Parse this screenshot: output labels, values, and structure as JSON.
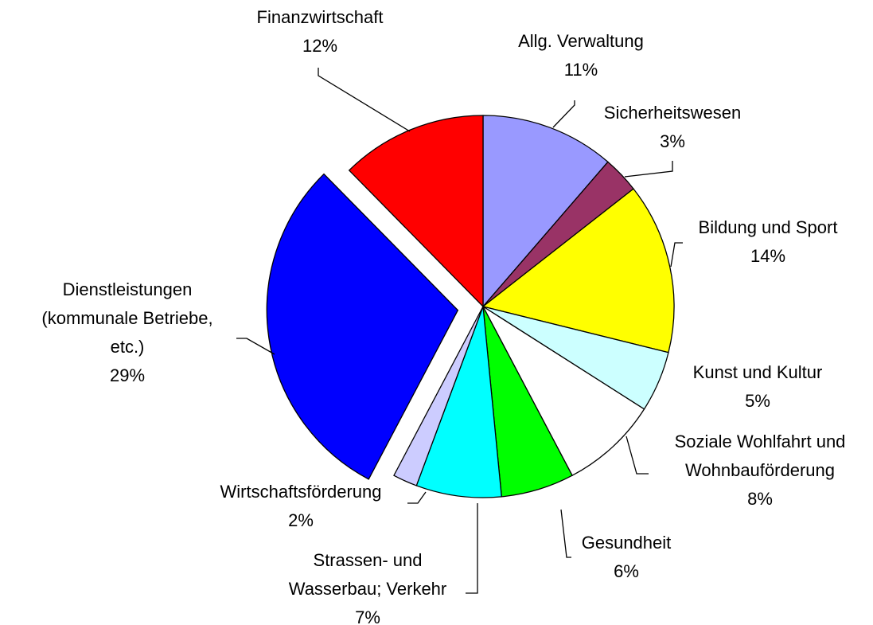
{
  "chart_data": {
    "type": "pie",
    "categories": [
      "Allg. Verwaltung",
      "Sicherheitswesen",
      "Bildung und Sport",
      "Kunst und Kultur",
      "Soziale Wohlfahrt und\nWohnbauförderung",
      "Gesundheit",
      "Strassen- und\nWasserbau; Verkehr",
      "Wirtschaftsförderung",
      "Dienstleistungen\n(kommunale Betriebe,\netc.)",
      "Finanzwirtschaft"
    ],
    "values": [
      11,
      3,
      14,
      5,
      8,
      6,
      7,
      2,
      29,
      12
    ],
    "value_labels": [
      "11%",
      "3%",
      "14%",
      "5%",
      "8%",
      "6%",
      "7%",
      "2%",
      "29%",
      "12%"
    ],
    "colors": [
      "#9999ff",
      "#993366",
      "#ffff00",
      "#ccffff",
      "#ffffff",
      "#00ff00",
      "#00ffff",
      "#ccccff",
      "#0000ff",
      "#ff0000"
    ],
    "explode_index": 8
  }
}
